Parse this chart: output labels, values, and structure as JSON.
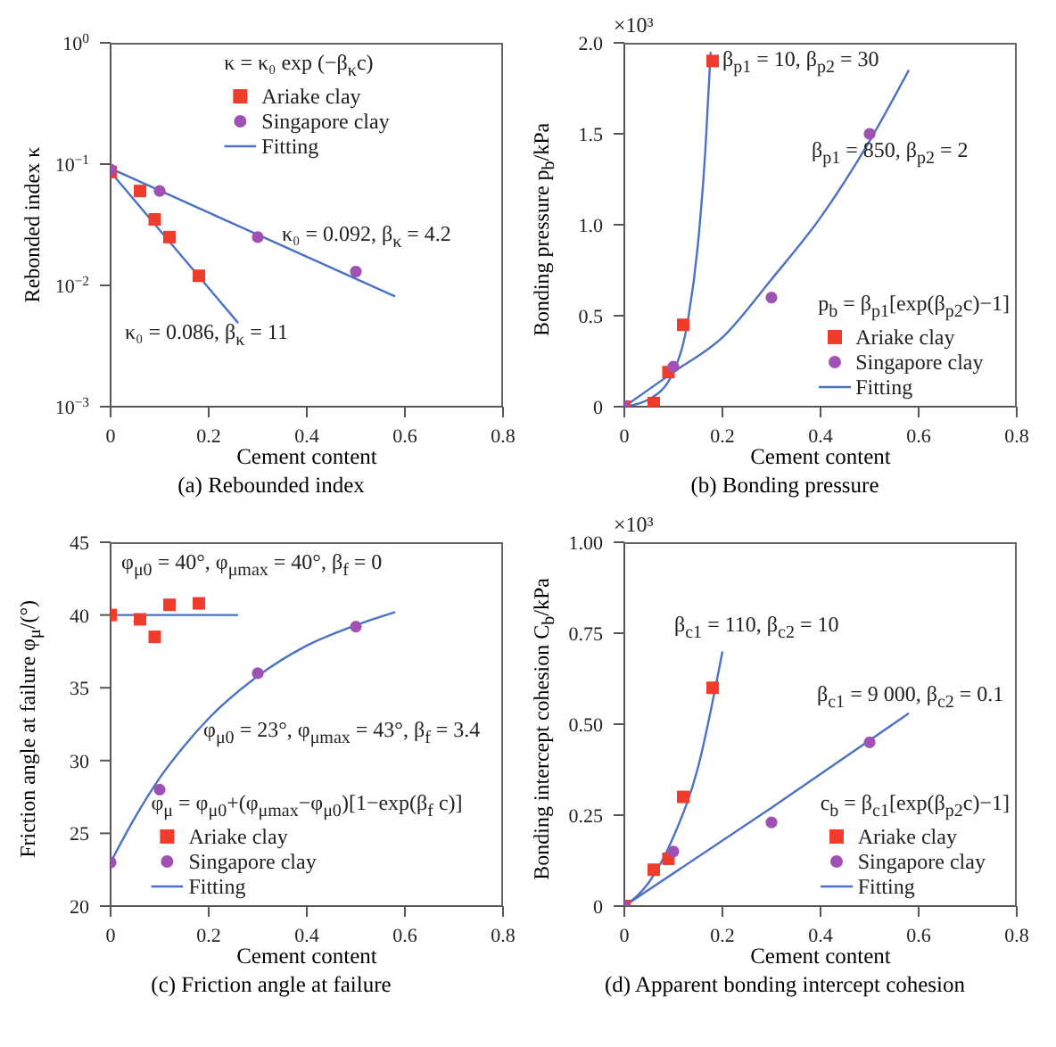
{
  "chart_data": [
    {
      "type": "scatter",
      "title": "(a) Rebounded index",
      "xlabel": "Cement content",
      "ylabel": "Rebonded index κ",
      "log": "y",
      "xlim": [
        0,
        0.8
      ],
      "xticks": [
        0,
        0.2,
        0.4,
        0.6,
        0.8
      ],
      "ylim": [
        0.001,
        1
      ],
      "yticks": [
        {
          "value": 0.001,
          "label": "10$^{−3}$"
        },
        {
          "value": 0.01,
          "label": "10$^{−2}$"
        },
        {
          "value": 0.1,
          "label": "10$^{−1}$"
        },
        {
          "value": 1,
          "label": "10$^{0}$"
        }
      ],
      "legend": "top",
      "line_style": "solid",
      "series": [
        {
          "name": "Ariake clay",
          "type": "scatter",
          "marker": "square",
          "color": "#f03c2d",
          "x": [
            0,
            0.06,
            0.09,
            0.12,
            0.18
          ],
          "values": [
            0.086,
            0.06,
            0.035,
            0.025,
            0.012
          ]
        },
        {
          "name": "Singapore clay",
          "type": "scatter",
          "marker": "circle",
          "color": "#a052b4",
          "x": [
            0,
            0.1,
            0.3,
            0.5
          ],
          "values": [
            0.09,
            0.06,
            0.025,
            0.013
          ]
        },
        {
          "name": "Fitting",
          "type": "line",
          "marker": "none",
          "color": "#4a72c4",
          "x": [
            0,
            0.1,
            0.2,
            0.26
          ],
          "values": [
            0.086,
            0.0286,
            0.0095,
            0.0049
          ]
        },
        {
          "type": "line",
          "marker": "none",
          "color": "#4a72c4",
          "x": [
            0,
            0.2,
            0.4,
            0.58
          ],
          "values": [
            0.092,
            0.0398,
            0.0172,
            0.0081
          ]
        }
      ],
      "annotations": [
        "κ = κ₀ exp (−β$_{κ}$c)",
        "κ₀ = 0.092, β$_{κ}$ = 4.2",
        "κ₀ = 0.086, β$_{κ}$ = 11"
      ]
    },
    {
      "type": "scatter",
      "title": "(b) Bonding pressure",
      "xlabel": "Cement content",
      "ylabel": "Bonding pressure p$_{b}$/kPa",
      "xlim": [
        0,
        0.8
      ],
      "xticks": [
        0,
        0.2,
        0.4,
        0.6,
        0.8
      ],
      "ylim": [
        0,
        2.0
      ],
      "yticks": [
        0,
        {
          "value": 0.5,
          "label": "0.5"
        },
        {
          "value": 1,
          "label": "1.0"
        },
        {
          "value": 1.5,
          "label": "1.5"
        },
        {
          "value": 2,
          "label": "2.0"
        }
      ],
      "legend": "bottom right",
      "line_style": "solid",
      "series": [
        {
          "name": "Ariake clay",
          "type": "scatter",
          "marker": "square",
          "color": "#f03c2d",
          "x": [
            0,
            0.06,
            0.09,
            0.12,
            0.18
          ],
          "values": [
            0,
            0.02,
            0.19,
            0.45,
            1.9
          ]
        },
        {
          "name": "Singapore clay",
          "type": "scatter",
          "marker": "circle",
          "color": "#a052b4",
          "x": [
            0,
            0.1,
            0.3,
            0.5
          ],
          "values": [
            0,
            0.22,
            0.6,
            1.5
          ]
        },
        {
          "name": "Fitting",
          "type": "line",
          "marker": "none",
          "color": "#4a72c4",
          "x": [
            0,
            0.05,
            0.1,
            0.13,
            0.15,
            0.165,
            0.176
          ],
          "values": [
            0,
            0.04,
            0.19,
            0.48,
            0.89,
            1.4,
            1.95
          ]
        },
        {
          "type": "line",
          "marker": "none",
          "color": "#4a72c4",
          "x": [
            0,
            0.1,
            0.2,
            0.3,
            0.4,
            0.5,
            0.58
          ],
          "values": [
            0,
            0.19,
            0.38,
            0.7,
            1.04,
            1.46,
            1.85
          ]
        }
      ],
      "annotations": [
        "p$_{b}$ = β$_{p1}$[exp(β$_{p2}$c)−1]",
        "×10³",
        "β$_{p1}$ = 10, β$_{p2}$ = 30",
        "β$_{p1}$ = 850, β$_{p2}$ = 2"
      ]
    },
    {
      "type": "scatter",
      "title": "(c) Friction angle at failure",
      "xlabel": "Cement content",
      "ylabel": "Friction angle at failure φ$_{μ}$/(°)",
      "xlim": [
        0,
        0.8
      ],
      "xticks": [
        0,
        0.2,
        0.4,
        0.6,
        0.8
      ],
      "ylim": [
        20,
        45
      ],
      "yticks": [
        20,
        25,
        30,
        35,
        40,
        45
      ],
      "legend": "bottom",
      "line_style": "solid",
      "series": [
        {
          "name": "Ariake clay",
          "type": "scatter",
          "marker": "square",
          "color": "#f03c2d",
          "x": [
            0,
            0.06,
            0.09,
            0.12,
            0.18
          ],
          "values": [
            40,
            39.7,
            38.5,
            40.7,
            40.8
          ]
        },
        {
          "name": "Singapore clay",
          "type": "scatter",
          "marker": "circle",
          "color": "#a052b4",
          "x": [
            0,
            0.1,
            0.3,
            0.5
          ],
          "values": [
            23,
            28,
            36,
            39.2
          ]
        },
        {
          "name": "Fitting",
          "type": "line",
          "marker": "none",
          "color": "#4a72c4",
          "x": [
            0,
            0.26
          ],
          "values": [
            40,
            40
          ]
        },
        {
          "type": "line",
          "marker": "none",
          "color": "#4a72c4",
          "x": [
            0,
            0.05,
            0.1,
            0.15,
            0.2,
            0.3,
            0.4,
            0.5,
            0.58
          ],
          "values": [
            23,
            26.1,
            28.8,
            31,
            32.9,
            35.8,
            37.9,
            39.3,
            40.2
          ]
        }
      ],
      "annotations": [
        "φ$_{μ}$ = φ$_{μ0}$+(φ$_{μmax}$−φ$_{μ0}$)[1−exp(β$_{f}$ c)]",
        "φ$_{μ0}$ = 40°, φ$_{μmax}$ = 40°, β$_{f}$ = 0",
        "φ$_{μ0}$ = 23°, φ$_{μmax}$ = 43°, β$_{f}$ = 3.4"
      ]
    },
    {
      "type": "scatter",
      "title": "(d) Apparent bonding intercept cohesion",
      "xlabel": "Cement content",
      "ylabel": "Bonding intercept cohesion C$_{b}$/kPa",
      "xlim": [
        0,
        0.8
      ],
      "xticks": [
        0,
        0.2,
        0.4,
        0.6,
        0.8
      ],
      "ylim": [
        0,
        1.0
      ],
      "yticks": [
        0,
        {
          "value": 0.25,
          "label": "0.25"
        },
        {
          "value": 0.5,
          "label": "0.50"
        },
        {
          "value": 0.75,
          "label": "0.75"
        },
        {
          "value": 1,
          "label": "1.00"
        }
      ],
      "legend": "bottom right",
      "line_style": "solid",
      "series": [
        {
          "name": "Ariake clay",
          "type": "scatter",
          "marker": "square",
          "color": "#f03c2d",
          "x": [
            0,
            0.06,
            0.09,
            0.12,
            0.18
          ],
          "values": [
            0,
            0.1,
            0.13,
            0.3,
            0.6
          ]
        },
        {
          "name": "Singapore clay",
          "type": "scatter",
          "marker": "circle",
          "color": "#a052b4",
          "x": [
            0,
            0.1,
            0.3,
            0.5
          ],
          "values": [
            0,
            0.15,
            0.23,
            0.45
          ]
        },
        {
          "name": "Fitting",
          "type": "line",
          "marker": "none",
          "color": "#4a72c4",
          "x": [
            0,
            0.05,
            0.1,
            0.15,
            0.2
          ],
          "values": [
            0,
            0.065,
            0.19,
            0.38,
            0.7
          ]
        },
        {
          "type": "line",
          "marker": "none",
          "color": "#4a72c4",
          "x": [
            0,
            0.3,
            0.58
          ],
          "values": [
            0,
            0.27,
            0.53
          ]
        }
      ],
      "annotations": [
        "c$_{b}$ = β$_{c1}$[exp(β$_{p2}$c)−1]",
        "×10³",
        "β$_{c1}$ = 110, β$_{c2}$ = 10",
        "β$_{c1}$ = 9 000, β$_{c2}$ = 0.1"
      ]
    }
  ]
}
